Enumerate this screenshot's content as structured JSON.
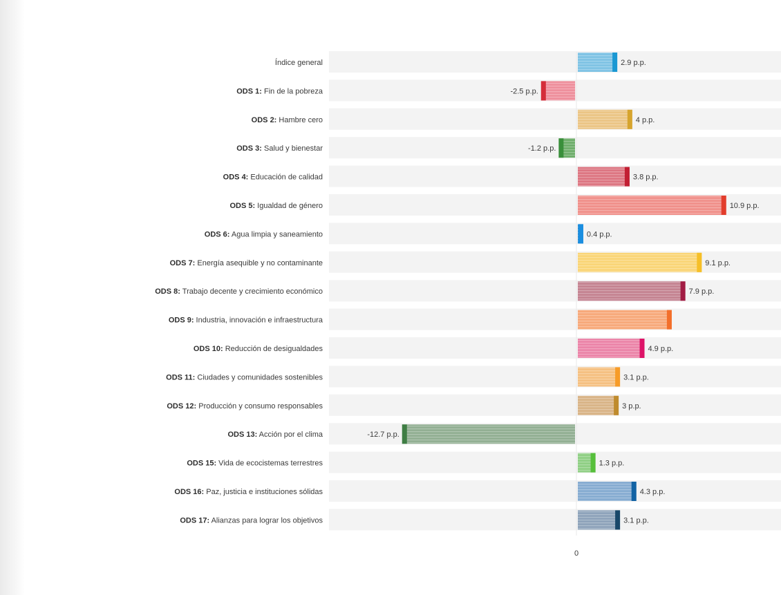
{
  "chart_data": {
    "type": "bar",
    "orientation": "horizontal",
    "title": "",
    "xlabel": "",
    "ylabel": "",
    "xlim": [
      -13.5,
      11
    ],
    "xticks": [
      "0"
    ],
    "categories": [
      {
        "prefix": "",
        "name": "Índice general"
      },
      {
        "prefix": "ODS 1:",
        "name": "Fin de la pobreza"
      },
      {
        "prefix": "ODS 2:",
        "name": "Hambre cero"
      },
      {
        "prefix": "ODS 3:",
        "name": "Salud y bienestar"
      },
      {
        "prefix": "ODS 4:",
        "name": "Educación de calidad"
      },
      {
        "prefix": "ODS 5:",
        "name": "Igualdad de género"
      },
      {
        "prefix": "ODS 6:",
        "name": "Agua limpia y saneamiento"
      },
      {
        "prefix": "ODS 7:",
        "name": "Energía asequible y no contaminante"
      },
      {
        "prefix": "ODS 8:",
        "name": "Trabajo decente y crecimiento económico"
      },
      {
        "prefix": "ODS 9:",
        "name": "Industria, innovación e infraestructura"
      },
      {
        "prefix": "ODS 10:",
        "name": "Reducción de desigualdades"
      },
      {
        "prefix": "ODS 11:",
        "name": "Ciudades y comunidades sostenibles"
      },
      {
        "prefix": "ODS 12:",
        "name": "Producción y consumo responsables"
      },
      {
        "prefix": "ODS 13:",
        "name": "Acción por el clima"
      },
      {
        "prefix": "ODS 15:",
        "name": "Vida de ecocistemas terrestres"
      },
      {
        "prefix": "ODS 16:",
        "name": "Paz, justicia e instituciones sólidas"
      },
      {
        "prefix": "ODS 17:",
        "name": "Alianzas para lograr los objetivos"
      }
    ],
    "values": [
      2.9,
      -2.5,
      4,
      -1.2,
      3.8,
      10.9,
      0.4,
      9.1,
      7.9,
      6.9,
      4.9,
      3.1,
      3,
      -12.7,
      1.3,
      4.3,
      3.1
    ],
    "value_labels": [
      "2.9 p.p.",
      "-2.5 p.p.",
      "4 p.p.",
      "-1.2 p.p.",
      "3.8 p.p.",
      "10.9 p.p.",
      "0.4 p.p.",
      "9.1 p.p.",
      "7.9 p.p.",
      "",
      "4.9 p.p.",
      "3.1 p.p.",
      "3 p.p.",
      "-12.7 p.p.",
      "1.3 p.p.",
      "4.3 p.p.",
      "3.1 p.p."
    ],
    "colors": {
      "fill": [
        "#7fc3e4",
        "#ee8f9c",
        "#ebc585",
        "#6fae6b",
        "#dd7682",
        "#f0908a",
        "#2a8fd4",
        "#fad577",
        "#c48391",
        "#f7a97a",
        "#eb84a8",
        "#f5c081",
        "#d9b487",
        "#92af93",
        "#8fcf84",
        "#86acd1",
        "#8ea3ba"
      ],
      "accent": [
        "#1a98d3",
        "#d52d3a",
        "#d6a42e",
        "#3a8f3b",
        "#c21f33",
        "#e23d2c",
        "#1a8ee0",
        "#f6bf27",
        "#a21c44",
        "#f36f2a",
        "#dd1367",
        "#f79c28",
        "#bf8b2e",
        "#3f7e44",
        "#56bf3b",
        "#1263a4",
        "#19486a"
      ]
    }
  }
}
